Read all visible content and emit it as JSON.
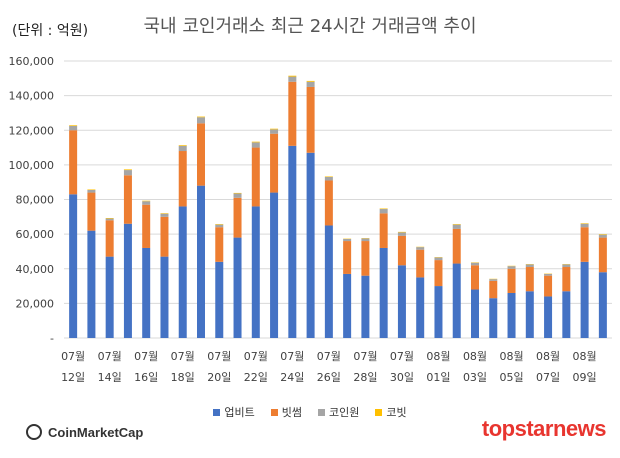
{
  "header": {
    "unit": "(단위 : 억원)",
    "title": "국내 코인거래소 최근 24시간 거래금액 추이"
  },
  "colors": {
    "upbit": "#4472C4",
    "bithumb": "#ED7D31",
    "coinone": "#A5A5A5",
    "korbit": "#FFC000",
    "grid": "#d9d9d9",
    "axis_text": "#404040"
  },
  "logos": {
    "left": "CoinMarketCap",
    "right": "topstarnews"
  },
  "chart_data": {
    "type": "bar",
    "stacked": true,
    "ylim": [
      0,
      160000
    ],
    "yticks": [
      "-",
      "20,000",
      "40,000",
      "60,000",
      "80,000",
      "100,000",
      "120,000",
      "140,000",
      "160,000"
    ],
    "ytick_values": [
      0,
      20000,
      40000,
      60000,
      80000,
      100000,
      120000,
      140000,
      160000
    ],
    "grid": true,
    "legend_position": "bottom",
    "x_label_rows": [
      [
        "07월",
        "12일"
      ],
      [
        "07월",
        "14일"
      ],
      [
        "07월",
        "16일"
      ],
      [
        "07월",
        "18일"
      ],
      [
        "07월",
        "20일"
      ],
      [
        "07월",
        "22일"
      ],
      [
        "07월",
        "24일"
      ],
      [
        "07월",
        "26일"
      ],
      [
        "07월",
        "28일"
      ],
      [
        "07월",
        "30일"
      ],
      [
        "08월",
        "01일"
      ],
      [
        "08월",
        "03일"
      ],
      [
        "08월",
        "05일"
      ],
      [
        "08월",
        "07일"
      ],
      [
        "08월",
        "09일"
      ]
    ],
    "series": [
      {
        "name": "업비트",
        "values": [
          83000,
          62000,
          47000,
          66000,
          52000,
          47000,
          76000,
          88000,
          44000,
          58000,
          76000,
          84000,
          111000,
          107000,
          65000,
          37000,
          36000,
          52000,
          42000,
          35000,
          30000,
          43000,
          28000,
          23000,
          26000,
          27000,
          24000,
          27000,
          44000,
          38000
        ]
      },
      {
        "name": "빗썸",
        "values": [
          37000,
          22000,
          21000,
          28000,
          25000,
          23000,
          32000,
          36000,
          20000,
          23000,
          34000,
          34000,
          37000,
          38000,
          26000,
          19000,
          20000,
          20000,
          17000,
          16000,
          15000,
          20000,
          14000,
          10000,
          14000,
          14000,
          12000,
          14000,
          20000,
          20000
        ]
      },
      {
        "name": "코인원",
        "values": [
          2500,
          1500,
          1000,
          3000,
          2000,
          1800,
          3000,
          3500,
          1500,
          2500,
          3000,
          2500,
          3000,
          3000,
          2000,
          1200,
          1500,
          2500,
          2000,
          1500,
          1500,
          2500,
          1500,
          1000,
          1500,
          1500,
          1000,
          1500,
          2000,
          1700
        ]
      },
      {
        "name": "코빗",
        "values": [
          400,
          300,
          300,
          400,
          300,
          300,
          400,
          400,
          300,
          300,
          400,
          400,
          500,
          500,
          300,
          200,
          200,
          300,
          300,
          200,
          200,
          300,
          200,
          200,
          200,
          200,
          200,
          200,
          300,
          300
        ]
      }
    ]
  }
}
